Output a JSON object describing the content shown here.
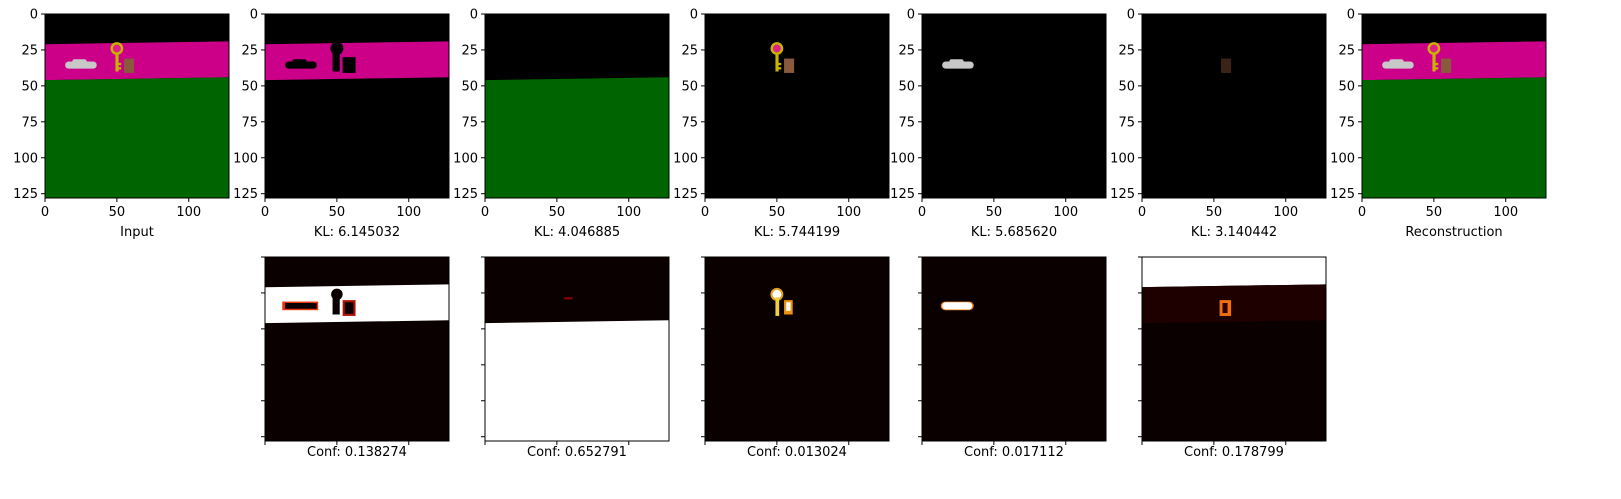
{
  "figure": {
    "top_row_captions": [
      "Input",
      "KL: 6.145032",
      "KL: 4.046885",
      "KL: 5.744199",
      "KL: 5.685620",
      "KL: 3.140442",
      "Reconstruction"
    ],
    "bottom_row_captions": [
      "Conf: 0.138274",
      "Conf: 0.652791",
      "Conf: 0.013024",
      "Conf: 0.017112",
      "Conf: 0.178799"
    ]
  },
  "chart_data": [
    {
      "type": "heatmap",
      "title": "",
      "xlabel": "Input",
      "ylabel": "",
      "xlim": [
        0,
        128
      ],
      "ylim": [
        128,
        0
      ],
      "xticks": [
        0,
        50,
        100
      ],
      "yticks": [
        0,
        25,
        50,
        75,
        100,
        125
      ],
      "content": "rgb image: black sky, magenta band, green floor, key and objects"
    },
    {
      "type": "heatmap",
      "title": "",
      "xlabel": "KL: 6.145032",
      "ylabel": "",
      "xlim": [
        0,
        128
      ],
      "ylim": [
        128,
        0
      ],
      "xticks": [
        0,
        50,
        100
      ],
      "yticks": [
        0,
        25,
        50,
        75,
        100,
        125
      ],
      "content": "magenta band with dark object holes"
    },
    {
      "type": "heatmap",
      "title": "",
      "xlabel": "KL: 4.046885",
      "ylabel": "",
      "xlim": [
        0,
        128
      ],
      "ylim": [
        128,
        0
      ],
      "xticks": [
        0,
        50,
        100
      ],
      "yticks": [
        0,
        25,
        50,
        75,
        100,
        125
      ],
      "content": "green floor"
    },
    {
      "type": "heatmap",
      "title": "",
      "xlabel": "KL: 5.744199",
      "ylabel": "",
      "xlim": [
        0,
        128
      ],
      "ylim": [
        128,
        0
      ],
      "xticks": [
        0,
        50,
        100
      ],
      "yticks": [
        0,
        25,
        50,
        75,
        100,
        125
      ],
      "content": "key and brown object"
    },
    {
      "type": "heatmap",
      "title": "",
      "xlabel": "KL: 5.685620",
      "ylabel": "",
      "xlim": [
        0,
        128
      ],
      "ylim": [
        128,
        0
      ],
      "xticks": [
        0,
        50,
        100
      ],
      "yticks": [
        0,
        25,
        50,
        75,
        100,
        125
      ],
      "content": "grey object"
    },
    {
      "type": "heatmap",
      "title": "",
      "xlabel": "KL: 3.140442",
      "ylabel": "",
      "xlim": [
        0,
        128
      ],
      "ylim": [
        128,
        0
      ],
      "xticks": [
        0,
        50,
        100
      ],
      "yticks": [
        0,
        25,
        50,
        75,
        100,
        125
      ],
      "content": "faint brown object"
    },
    {
      "type": "heatmap",
      "title": "",
      "xlabel": "Reconstruction",
      "ylabel": "",
      "xlim": [
        0,
        128
      ],
      "ylim": [
        128,
        0
      ],
      "xticks": [
        0,
        50,
        100
      ],
      "yticks": [
        0,
        25,
        50,
        75,
        100,
        125
      ],
      "content": "rgb reconstruction similar to input"
    },
    {
      "type": "heatmap",
      "title": "",
      "xlabel": "Conf: 0.138274",
      "colormap": "hot",
      "content": "mask of magenta band"
    },
    {
      "type": "heatmap",
      "title": "",
      "xlabel": "Conf: 0.652791",
      "colormap": "hot",
      "content": "mask of floor"
    },
    {
      "type": "heatmap",
      "title": "",
      "xlabel": "Conf: 0.013024",
      "colormap": "hot",
      "content": "mask of key"
    },
    {
      "type": "heatmap",
      "title": "",
      "xlabel": "Conf: 0.017112",
      "colormap": "hot",
      "content": "mask of grey object"
    },
    {
      "type": "heatmap",
      "title": "",
      "xlabel": "Conf: 0.178799",
      "colormap": "hot",
      "content": "mask of sky / brown object"
    }
  ],
  "colors": {
    "magenta": "#cc0088",
    "green": "#006400",
    "black": "#000000",
    "hot_dark": "#0b0000",
    "hot_white": "#ffffff",
    "key_yellow": "#c8b400",
    "key_pink": "#e0208a",
    "brown": "#8a5a3c",
    "grey": "#c8c8c8"
  }
}
